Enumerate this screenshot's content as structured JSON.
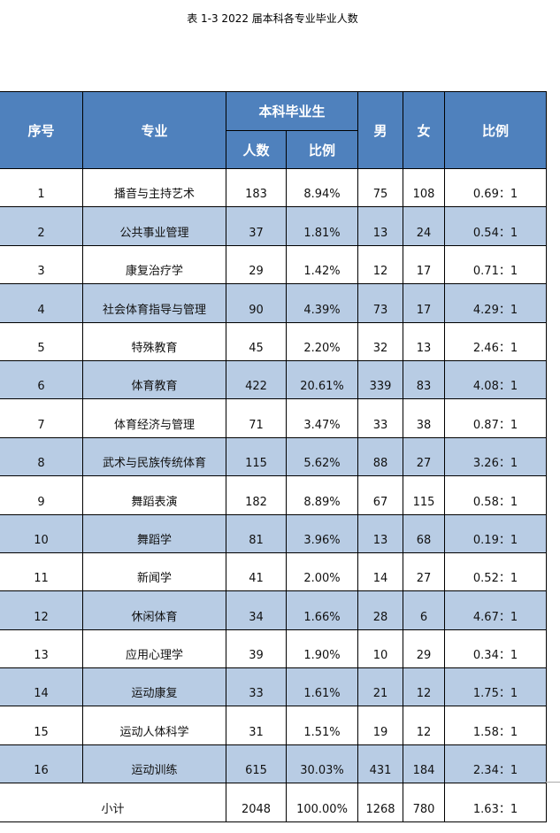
{
  "title": "表 1-3   2022 届本科各专业毕业人数",
  "headers": {
    "seq": "序号",
    "major": "专业",
    "group": "本科毕业生",
    "count": "人数",
    "pct": "比例",
    "male": "男",
    "female": "女",
    "ratio": "比例"
  },
  "rows": [
    [
      "1",
      "播音与主持艺术",
      "183",
      "8.94%",
      "75",
      "108",
      "0.69：1"
    ],
    [
      "2",
      "公共事业管理",
      "37",
      "1.81%",
      "13",
      "24",
      "0.54：1"
    ],
    [
      "3",
      "康复治疗学",
      "29",
      "1.42%",
      "12",
      "17",
      "0.71：1"
    ],
    [
      "4",
      "社会体育指导与管理",
      "90",
      "4.39%",
      "73",
      "17",
      "4.29：1"
    ],
    [
      "5",
      "特殊教育",
      "45",
      "2.20%",
      "32",
      "13",
      "2.46：1"
    ],
    [
      "6",
      "体育教育",
      "422",
      "20.61%",
      "339",
      "83",
      "4.08：1"
    ],
    [
      "7",
      "体育经济与管理",
      "71",
      "3.47%",
      "33",
      "38",
      "0.87：1"
    ],
    [
      "8",
      "武术与民族传统体育",
      "115",
      "5.62%",
      "88",
      "27",
      "3.26：1"
    ],
    [
      "9",
      "舞蹈表演",
      "182",
      "8.89%",
      "67",
      "115",
      "0.58：1"
    ],
    [
      "10",
      "舞蹈学",
      "81",
      "3.96%",
      "13",
      "68",
      "0.19：1"
    ],
    [
      "11",
      "新闻学",
      "41",
      "2.00%",
      "14",
      "27",
      "0.52：1"
    ],
    [
      "12",
      "休闲体育",
      "34",
      "1.66%",
      "28",
      "6",
      "4.67：1"
    ],
    [
      "13",
      "应用心理学",
      "39",
      "1.90%",
      "10",
      "29",
      "0.34：1"
    ],
    [
      "14",
      "运动康复",
      "33",
      "1.61%",
      "21",
      "12",
      "1.75：1"
    ],
    [
      "15",
      "运动人体科学",
      "31",
      "1.51%",
      "19",
      "12",
      "1.58：1"
    ],
    [
      "16",
      "运动训练",
      "615",
      "30.03%",
      "431",
      "184",
      "2.34：1"
    ]
  ],
  "total": [
    "小计",
    "2048",
    "100.00%",
    "1268",
    "780",
    "1.63：1"
  ],
  "colors": {
    "header": "#4f81bd",
    "alt_row": "#b8cce4"
  }
}
